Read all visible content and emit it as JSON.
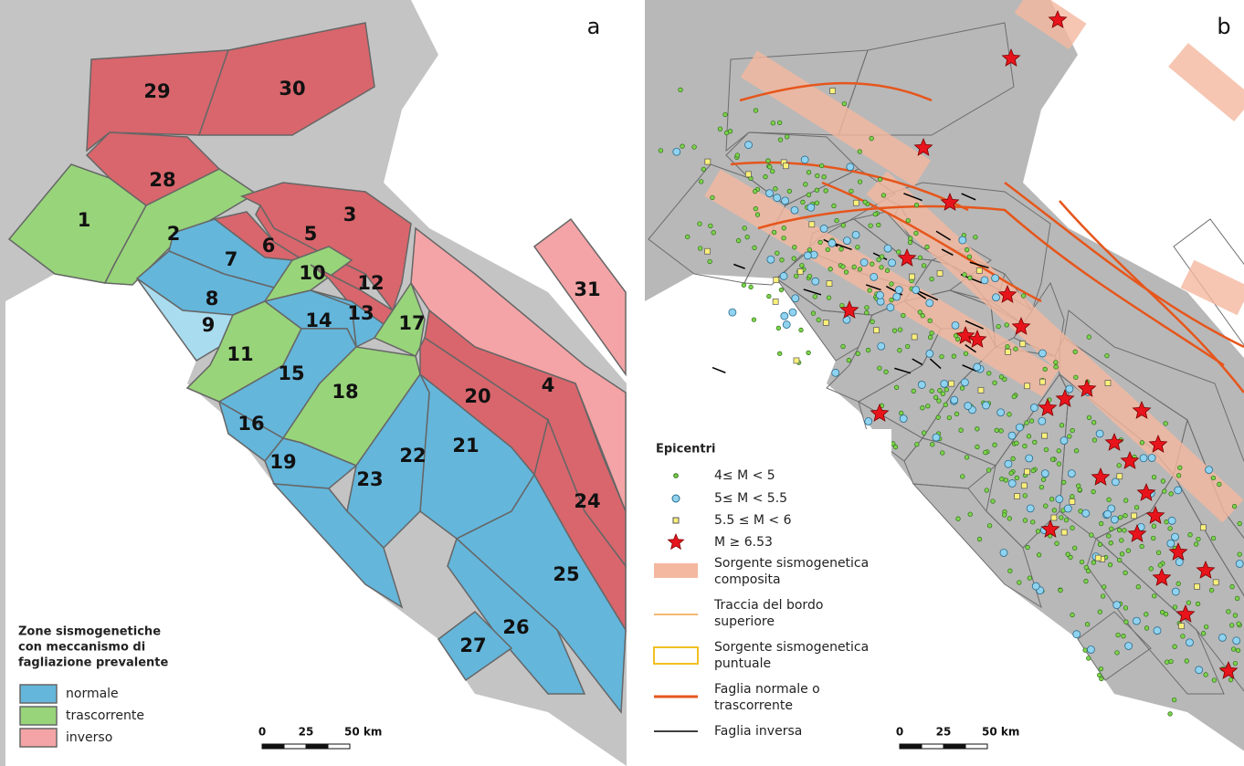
{
  "panel_a": {
    "label": "a",
    "zones": [
      "1",
      "2",
      "3",
      "4",
      "5",
      "6",
      "7",
      "8",
      "9",
      "10",
      "11",
      "12",
      "13",
      "14",
      "15",
      "16",
      "17",
      "18",
      "19",
      "20",
      "21",
      "22",
      "23",
      "24",
      "25",
      "26",
      "27",
      "28",
      "29",
      "30",
      "31"
    ],
    "legend": {
      "title": [
        "Zone sismogenetiche",
        "con meccanismo di",
        "fagliazione prevalente"
      ],
      "items": [
        "normale",
        "trascorrente",
        "inverso"
      ]
    },
    "scale": [
      "0",
      "25",
      "50 km"
    ]
  },
  "panel_b": {
    "label": "b",
    "legend": {
      "title": "Epicentri",
      "items": [
        [
          "4≤ M < 5"
        ],
        [
          "5≤ M < 5.5"
        ],
        [
          "5.5 ≤ M < 6"
        ],
        [
          "M ≥ 6.53"
        ],
        [
          "Sorgente sismogenetica",
          "composita"
        ],
        [
          "Traccia del bordo",
          "superiore"
        ],
        [
          "Sorgente sismogenetica",
          "puntuale"
        ],
        [
          "Faglia normale o",
          "trascorrente"
        ],
        [
          "Faglia inversa"
        ]
      ]
    },
    "scale": [
      "0",
      "25",
      "50 km"
    ]
  }
}
